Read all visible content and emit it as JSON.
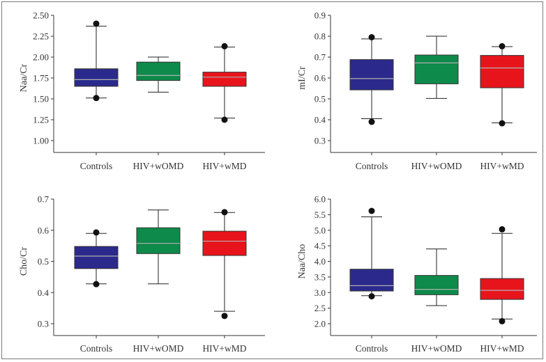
{
  "colors": {
    "controls": "#2b2a8c",
    "hiv_womd": "#0e8a4a",
    "hiv_wmd": "#e8141c",
    "median_line": "#b0b0b0",
    "whisker": "#222222",
    "outlier": "#111111",
    "axis": "#333333"
  },
  "chart_data": [
    {
      "type": "box",
      "ylabel": "Naa/Cr",
      "ylim": [
        1.0,
        2.5
      ],
      "yticks": [
        "1.00",
        "1.25",
        "1.50",
        "1.75",
        "2.00",
        "2.25",
        "2.50"
      ],
      "categories": [
        "Controls",
        "HIV+wOMD",
        "HIV+wMD"
      ],
      "boxes": [
        {
          "whisker_low": 1.51,
          "q1": 1.65,
          "median": 1.73,
          "q3": 1.86,
          "whisker_high": 2.37,
          "outliers": [
            1.51,
            2.4
          ]
        },
        {
          "whisker_low": 1.58,
          "q1": 1.72,
          "median": 1.78,
          "q3": 1.94,
          "whisker_high": 2.0,
          "outliers": []
        },
        {
          "whisker_low": 1.27,
          "q1": 1.65,
          "median": 1.76,
          "q3": 1.82,
          "whisker_high": 2.12,
          "outliers": [
            1.25,
            2.13
          ]
        }
      ]
    },
    {
      "type": "box",
      "ylabel": "mI/Cr",
      "ylim": [
        0.3,
        0.9
      ],
      "yticks": [
        "0.3",
        "0.4",
        "0.5",
        "0.6",
        "0.7",
        "0.8",
        "0.9"
      ],
      "categories": [
        "Controls",
        "HIV+wOMD",
        "HIV+wMD"
      ],
      "boxes": [
        {
          "whisker_low": 0.405,
          "q1": 0.543,
          "median": 0.597,
          "q3": 0.688,
          "whisker_high": 0.787,
          "outliers": [
            0.39,
            0.795
          ]
        },
        {
          "whisker_low": 0.502,
          "q1": 0.572,
          "median": 0.672,
          "q3": 0.71,
          "whisker_high": 0.8,
          "outliers": []
        },
        {
          "whisker_low": 0.385,
          "q1": 0.553,
          "median": 0.648,
          "q3": 0.708,
          "whisker_high": 0.75,
          "outliers": [
            0.383,
            0.752
          ]
        }
      ]
    },
    {
      "type": "box",
      "ylabel": "Cho/Cr",
      "ylim": [
        0.3,
        0.7
      ],
      "yticks": [
        "0.3",
        "0.4",
        "0.5",
        "0.6",
        "0.7"
      ],
      "categories": [
        "Controls",
        "HIV+wOMD",
        "HIV+wMD"
      ],
      "boxes": [
        {
          "whisker_low": 0.428,
          "q1": 0.477,
          "median": 0.517,
          "q3": 0.548,
          "whisker_high": 0.59,
          "outliers": [
            0.427,
            0.593
          ]
        },
        {
          "whisker_low": 0.428,
          "q1": 0.525,
          "median": 0.558,
          "q3": 0.608,
          "whisker_high": 0.665,
          "outliers": []
        },
        {
          "whisker_low": 0.34,
          "q1": 0.519,
          "median": 0.565,
          "q3": 0.597,
          "whisker_high": 0.657,
          "outliers": [
            0.325,
            0.658
          ]
        }
      ]
    },
    {
      "type": "box",
      "ylabel": "Naa/Cho",
      "ylim": [
        2.0,
        6.0
      ],
      "yticks": [
        "2.0",
        "2.5",
        "3.0",
        "3.5",
        "4.0",
        "4.5",
        "5.0",
        "5.5",
        "6.0"
      ],
      "categories": [
        "Controls",
        "HIV+wOMD",
        "HIV+wMD"
      ],
      "boxes": [
        {
          "whisker_low": 2.9,
          "q1": 3.05,
          "median": 3.22,
          "q3": 3.75,
          "whisker_high": 5.43,
          "outliers": [
            2.88,
            5.62
          ]
        },
        {
          "whisker_low": 2.58,
          "q1": 2.93,
          "median": 3.1,
          "q3": 3.55,
          "whisker_high": 4.4,
          "outliers": []
        },
        {
          "whisker_low": 2.15,
          "q1": 2.78,
          "median": 3.07,
          "q3": 3.45,
          "whisker_high": 4.9,
          "outliers": [
            2.08,
            5.03
          ]
        }
      ]
    }
  ]
}
